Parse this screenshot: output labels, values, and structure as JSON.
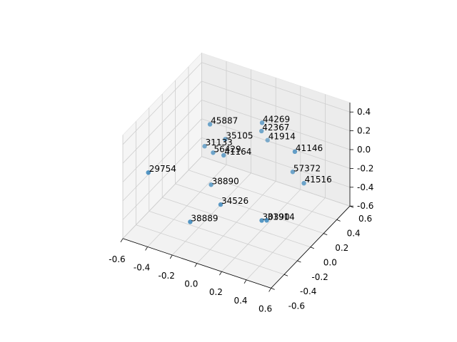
{
  "chart_data": {
    "type": "scatter3d",
    "x": [
      -0.24,
      0.07,
      0.06,
      -0.17,
      0.04,
      -0.31,
      -0.22,
      -0.14,
      0.33,
      -0.5,
      0.27,
      0.35,
      -0.21,
      -0.09,
      -0.23,
      0.2,
      0.23
    ],
    "y": [
      0.05,
      0.26,
      0.27,
      0.15,
      0.4,
      0.1,
      0.06,
      0.07,
      0.27,
      -0.4,
      0.35,
      0.37,
      0.01,
      -0.07,
      -0.27,
      0.01,
      0.03
    ],
    "z": [
      0.3,
      0.3,
      0.2,
      0.1,
      0,
      0,
      0,
      0,
      0.1,
      0,
      -0.2,
      -0.3,
      -0.3,
      -0.4,
      -0.5,
      -0.5,
      -0.5
    ],
    "labels": [
      45887,
      44269,
      42367,
      35105,
      41914,
      31133,
      56429,
      41164,
      41146,
      29754,
      57372,
      41516,
      38890,
      34526,
      38889,
      30390,
      31914
    ],
    "color": "#1f77b4",
    "xlim": [
      -0.6,
      0.6
    ],
    "ylim": [
      -0.6,
      0.6
    ],
    "zlim": [
      -0.6,
      0.5
    ],
    "xticks": [
      -0.6,
      -0.4,
      -0.2,
      {
        "value": 0,
        "label": "0.0"
      },
      0.2,
      0.4,
      0.6
    ],
    "yticks": [
      -0.6,
      -0.4,
      -0.2,
      {
        "value": 0,
        "label": "0.0"
      },
      0.2,
      0.4,
      0.6
    ],
    "zticks": [
      -0.6,
      -0.4,
      -0.2,
      {
        "value": 0,
        "label": "0.0"
      },
      0.2,
      0.4
    ],
    "grid": true
  }
}
